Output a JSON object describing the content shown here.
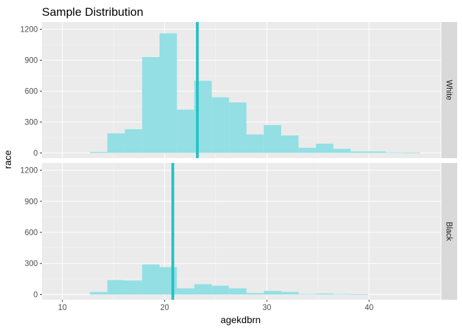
{
  "chart_data": {
    "type": "histogram",
    "title": "Sample Distribution",
    "xlabel": "agekdbrn",
    "ylabel": "race",
    "xlim": [
      8,
      47
    ],
    "x_ticks": [
      10,
      20,
      30,
      40
    ],
    "ylim": [
      -50,
      1270
    ],
    "y_ticks": [
      0,
      300,
      600,
      900,
      1200
    ],
    "bin_edges": [
      12.7,
      14.4,
      16.1,
      17.8,
      19.5,
      21.2,
      22.9,
      24.6,
      26.3,
      28.0,
      29.7,
      31.4,
      33.1,
      34.8,
      36.5,
      38.2,
      39.9,
      41.6,
      43.3,
      45.0
    ],
    "fill_color": "#93dfe3",
    "vline_color": "#26c0c7",
    "panels": [
      {
        "strip": "White",
        "counts": [
          10,
          190,
          230,
          930,
          1160,
          420,
          700,
          540,
          490,
          180,
          270,
          170,
          50,
          90,
          40,
          15,
          15,
          5,
          2
        ],
        "vline_x": 23.2
      },
      {
        "strip": "Black",
        "counts": [
          25,
          140,
          135,
          290,
          265,
          60,
          100,
          85,
          60,
          15,
          35,
          25,
          5,
          10,
          5,
          2,
          0,
          0,
          0
        ],
        "vline_x": 20.8
      }
    ]
  }
}
